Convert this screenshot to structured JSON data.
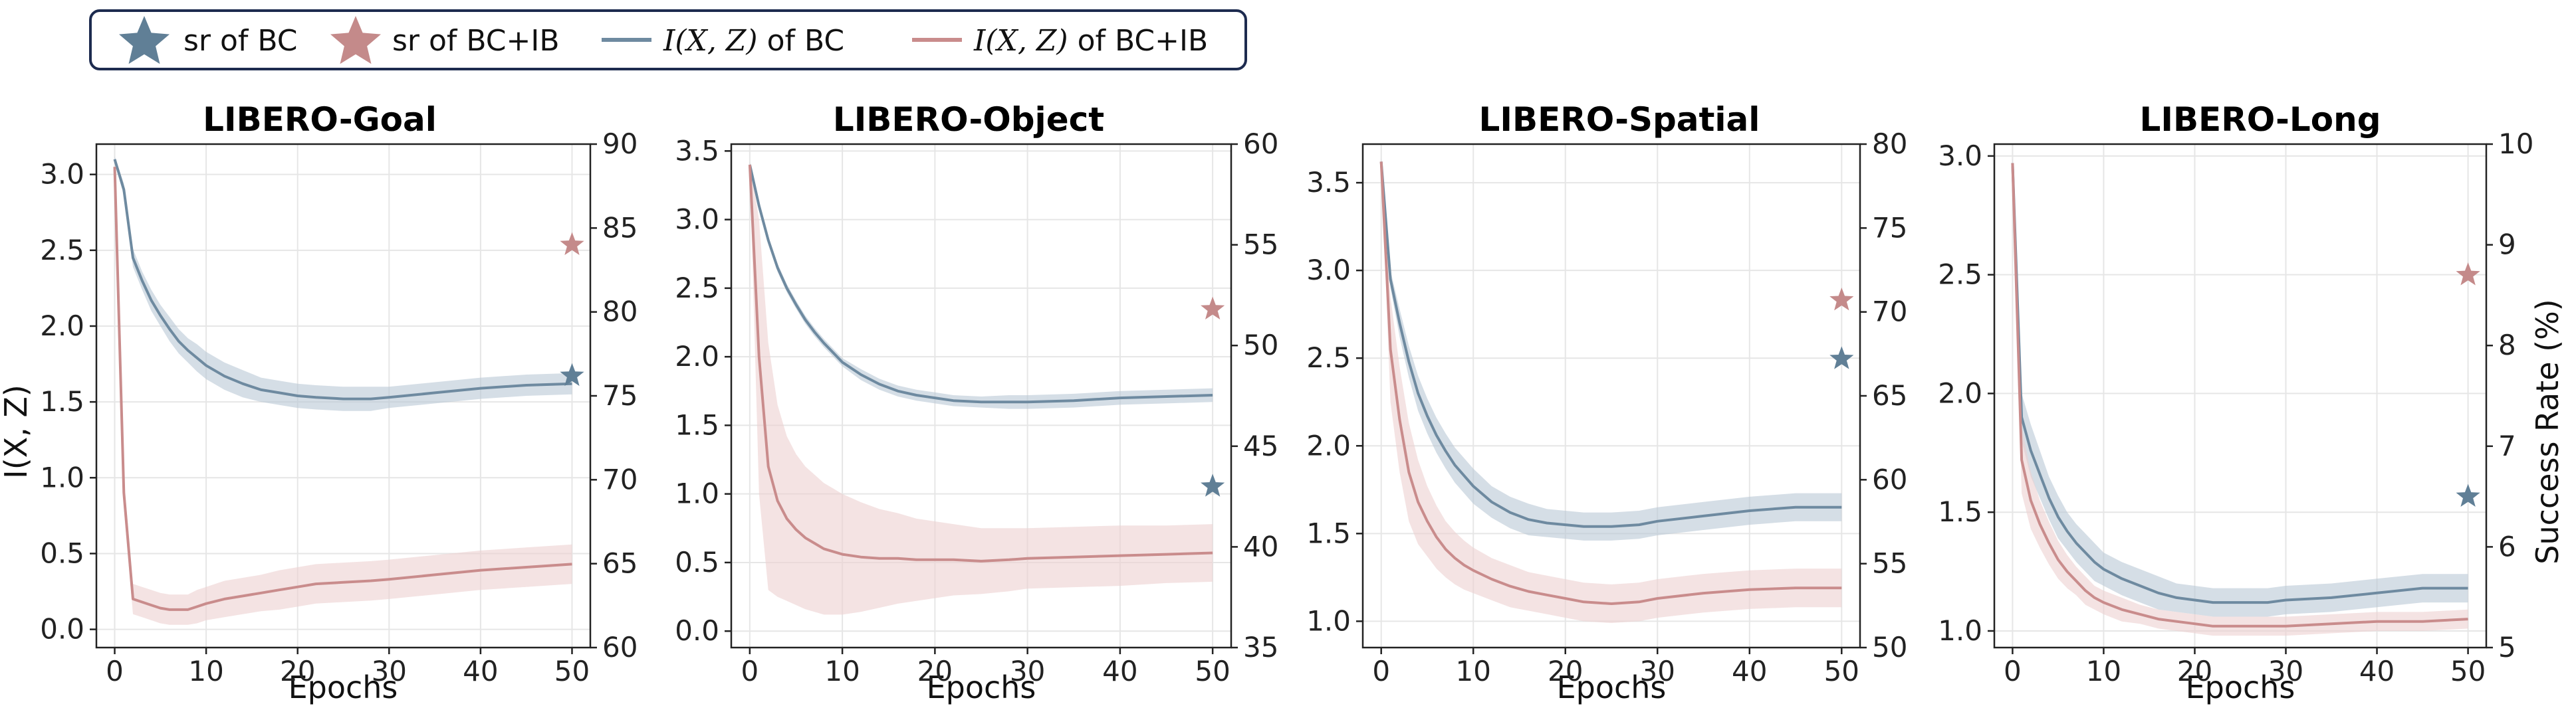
{
  "legend": {
    "items": [
      {
        "kind": "star",
        "color": "#607f96",
        "text": "sr of BC"
      },
      {
        "kind": "star",
        "color": "#c48a8a",
        "text": "sr of BC+IB"
      },
      {
        "kind": "line",
        "color": "#6e8aa0",
        "math": "I(X, Z)",
        "text": " of BC"
      },
      {
        "kind": "line",
        "color": "#c98c8c",
        "math": "I(X, Z)",
        "text": " of BC+IB"
      }
    ]
  },
  "chart_data": [
    {
      "type": "line",
      "title": "LIBERO-Goal",
      "xlabel": "Epochs",
      "ylabel": "I(X, Z)",
      "y2label": "",
      "xlim": [
        -2,
        52
      ],
      "ylim": [
        -0.12,
        3.2
      ],
      "y2lim": [
        60,
        90
      ],
      "xticks": [
        0,
        10,
        20,
        30,
        40,
        50
      ],
      "yticks": [
        0.0,
        0.5,
        1.0,
        1.5,
        2.0,
        2.5,
        3.0
      ],
      "ytick_labels": [
        "0.0",
        "0.5",
        "1.0",
        "1.5",
        "2.0",
        "2.5",
        "3.0"
      ],
      "y2ticks": [
        60,
        65,
        70,
        75,
        80,
        85,
        90
      ],
      "grid": true,
      "series": [
        {
          "color": "#6e8aa0",
          "band": "#b9c8d6",
          "x": [
            0,
            1,
            2,
            3,
            4,
            5,
            6,
            7,
            8,
            9,
            10,
            12,
            14,
            16,
            18,
            20,
            22,
            25,
            28,
            30,
            35,
            40,
            45,
            50
          ],
          "y": [
            3.1,
            2.9,
            2.45,
            2.3,
            2.17,
            2.07,
            1.98,
            1.9,
            1.84,
            1.79,
            1.74,
            1.67,
            1.62,
            1.58,
            1.56,
            1.54,
            1.53,
            1.52,
            1.52,
            1.53,
            1.56,
            1.59,
            1.61,
            1.62
          ],
          "band_width": [
            0.02,
            0.04,
            0.06,
            0.06,
            0.07,
            0.07,
            0.08,
            0.08,
            0.08,
            0.09,
            0.09,
            0.09,
            0.09,
            0.08,
            0.08,
            0.08,
            0.08,
            0.08,
            0.08,
            0.07,
            0.07,
            0.07,
            0.07,
            0.07
          ]
        },
        {
          "color": "#c98c8c",
          "band": "#ecd0d0",
          "x": [
            0,
            1,
            2,
            3,
            4,
            5,
            6,
            7,
            8,
            9,
            10,
            12,
            14,
            16,
            18,
            20,
            22,
            25,
            28,
            30,
            35,
            40,
            45,
            50
          ],
          "y": [
            3.05,
            0.9,
            0.2,
            0.18,
            0.16,
            0.14,
            0.13,
            0.13,
            0.13,
            0.15,
            0.17,
            0.2,
            0.22,
            0.24,
            0.26,
            0.28,
            0.3,
            0.31,
            0.32,
            0.33,
            0.36,
            0.39,
            0.41,
            0.43
          ],
          "band_width": [
            0.02,
            0.1,
            0.1,
            0.1,
            0.1,
            0.1,
            0.1,
            0.1,
            0.1,
            0.11,
            0.11,
            0.12,
            0.12,
            0.12,
            0.13,
            0.13,
            0.13,
            0.13,
            0.13,
            0.13,
            0.13,
            0.13,
            0.13,
            0.13
          ]
        }
      ],
      "stars": [
        {
          "x": 50,
          "sr": 76.2,
          "color": "#607f96"
        },
        {
          "x": 50,
          "sr": 84.0,
          "color": "#c48a8a"
        }
      ]
    },
    {
      "type": "line",
      "title": "LIBERO-Object",
      "xlabel": "Epochs",
      "ylabel": "",
      "y2label": "",
      "xlim": [
        -2,
        52
      ],
      "ylim": [
        -0.12,
        3.55
      ],
      "y2lim": [
        35,
        60
      ],
      "xticks": [
        0,
        10,
        20,
        30,
        40,
        50
      ],
      "yticks": [
        0.0,
        0.5,
        1.0,
        1.5,
        2.0,
        2.5,
        3.0,
        3.5
      ],
      "ytick_labels": [
        "0.0",
        "0.5",
        "1.0",
        "1.5",
        "2.0",
        "2.5",
        "3.0",
        "3.5"
      ],
      "y2ticks": [
        35,
        40,
        45,
        50,
        55,
        60
      ],
      "grid": true,
      "series": [
        {
          "color": "#6e8aa0",
          "band": "#b9c8d6",
          "x": [
            0,
            1,
            2,
            3,
            4,
            5,
            6,
            7,
            8,
            9,
            10,
            12,
            14,
            16,
            18,
            20,
            22,
            25,
            28,
            30,
            35,
            40,
            45,
            50
          ],
          "y": [
            3.4,
            3.1,
            2.85,
            2.65,
            2.5,
            2.38,
            2.27,
            2.18,
            2.1,
            2.03,
            1.96,
            1.87,
            1.8,
            1.75,
            1.72,
            1.7,
            1.68,
            1.67,
            1.67,
            1.67,
            1.68,
            1.7,
            1.71,
            1.72
          ],
          "band_width": [
            0.02,
            0.03,
            0.03,
            0.03,
            0.03,
            0.03,
            0.03,
            0.03,
            0.03,
            0.03,
            0.03,
            0.04,
            0.04,
            0.04,
            0.04,
            0.04,
            0.04,
            0.04,
            0.05,
            0.05,
            0.05,
            0.05,
            0.05,
            0.05
          ]
        },
        {
          "color": "#c98c8c",
          "band": "#ecd0d0",
          "x": [
            0,
            1,
            2,
            3,
            4,
            5,
            6,
            7,
            8,
            9,
            10,
            12,
            14,
            16,
            18,
            20,
            22,
            25,
            28,
            30,
            35,
            40,
            45,
            50
          ],
          "y": [
            3.4,
            2.0,
            1.2,
            0.95,
            0.82,
            0.74,
            0.68,
            0.64,
            0.6,
            0.58,
            0.56,
            0.54,
            0.53,
            0.53,
            0.52,
            0.52,
            0.52,
            0.51,
            0.52,
            0.53,
            0.54,
            0.55,
            0.56,
            0.57
          ],
          "band_width": [
            0.02,
            1.0,
            0.9,
            0.7,
            0.6,
            0.55,
            0.52,
            0.5,
            0.48,
            0.46,
            0.44,
            0.4,
            0.36,
            0.33,
            0.3,
            0.28,
            0.26,
            0.24,
            0.23,
            0.22,
            0.22,
            0.22,
            0.21,
            0.21
          ]
        }
      ],
      "stars": [
        {
          "x": 50,
          "sr": 43.0,
          "color": "#607f96"
        },
        {
          "x": 50,
          "sr": 51.8,
          "color": "#c48a8a"
        }
      ]
    },
    {
      "type": "line",
      "title": "LIBERO-Spatial",
      "xlabel": "Epochs",
      "ylabel": "",
      "y2label": "",
      "xlim": [
        -2,
        52
      ],
      "ylim": [
        0.85,
        3.72
      ],
      "y2lim": [
        50,
        80
      ],
      "xticks": [
        0,
        10,
        20,
        30,
        40,
        50
      ],
      "yticks": [
        1.0,
        1.5,
        2.0,
        2.5,
        3.0,
        3.5
      ],
      "ytick_labels": [
        "1.0",
        "1.5",
        "2.0",
        "2.5",
        "3.0",
        "3.5"
      ],
      "y2ticks": [
        50,
        55,
        60,
        65,
        70,
        75,
        80
      ],
      "grid": true,
      "series": [
        {
          "color": "#6e8aa0",
          "band": "#b9c8d6",
          "x": [
            0,
            1,
            2,
            3,
            4,
            5,
            6,
            7,
            8,
            9,
            10,
            12,
            14,
            16,
            18,
            20,
            22,
            25,
            28,
            30,
            35,
            40,
            45,
            50
          ],
          "y": [
            3.62,
            2.95,
            2.7,
            2.48,
            2.3,
            2.17,
            2.06,
            1.97,
            1.89,
            1.83,
            1.77,
            1.68,
            1.62,
            1.58,
            1.56,
            1.55,
            1.54,
            1.54,
            1.55,
            1.57,
            1.6,
            1.63,
            1.65,
            1.65
          ],
          "band_width": [
            0.02,
            0.05,
            0.08,
            0.09,
            0.1,
            0.1,
            0.1,
            0.1,
            0.1,
            0.1,
            0.1,
            0.09,
            0.09,
            0.09,
            0.08,
            0.08,
            0.08,
            0.08,
            0.08,
            0.08,
            0.08,
            0.08,
            0.08,
            0.08
          ]
        },
        {
          "color": "#c98c8c",
          "band": "#ecd0d0",
          "x": [
            0,
            1,
            2,
            3,
            4,
            5,
            6,
            7,
            8,
            9,
            10,
            12,
            14,
            16,
            18,
            20,
            22,
            25,
            28,
            30,
            35,
            40,
            45,
            50
          ],
          "y": [
            3.62,
            2.55,
            2.15,
            1.85,
            1.68,
            1.57,
            1.48,
            1.41,
            1.36,
            1.32,
            1.29,
            1.24,
            1.2,
            1.17,
            1.15,
            1.13,
            1.11,
            1.1,
            1.11,
            1.13,
            1.16,
            1.18,
            1.19,
            1.19
          ],
          "band_width": [
            0.02,
            0.3,
            0.3,
            0.28,
            0.24,
            0.2,
            0.18,
            0.16,
            0.15,
            0.14,
            0.13,
            0.12,
            0.12,
            0.11,
            0.11,
            0.11,
            0.11,
            0.11,
            0.11,
            0.11,
            0.11,
            0.11,
            0.11,
            0.11
          ]
        }
      ],
      "stars": [
        {
          "x": 50,
          "sr": 67.2,
          "color": "#607f96"
        },
        {
          "x": 50,
          "sr": 70.7,
          "color": "#c48a8a"
        }
      ]
    },
    {
      "type": "line",
      "title": "LIBERO-Long",
      "xlabel": "Epochs",
      "ylabel": "",
      "y2label": "Success Rate (%)",
      "xlim": [
        -2,
        52
      ],
      "ylim": [
        0.93,
        3.05
      ],
      "y2lim": [
        5,
        10
      ],
      "xticks": [
        0,
        10,
        20,
        30,
        40,
        50
      ],
      "yticks": [
        1.0,
        1.5,
        2.0,
        2.5,
        3.0
      ],
      "ytick_labels": [
        "1.0",
        "1.5",
        "2.0",
        "2.5",
        "3.0"
      ],
      "y2ticks": [
        5,
        6,
        7,
        8,
        9,
        10
      ],
      "grid": true,
      "series": [
        {
          "color": "#6e8aa0",
          "band": "#b9c8d6",
          "x": [
            0,
            1,
            2,
            3,
            4,
            5,
            6,
            7,
            8,
            9,
            10,
            12,
            14,
            16,
            18,
            20,
            22,
            25,
            28,
            30,
            35,
            40,
            45,
            50
          ],
          "y": [
            2.97,
            1.9,
            1.76,
            1.66,
            1.56,
            1.48,
            1.42,
            1.37,
            1.33,
            1.29,
            1.26,
            1.22,
            1.19,
            1.16,
            1.14,
            1.13,
            1.12,
            1.12,
            1.12,
            1.13,
            1.14,
            1.16,
            1.18,
            1.18
          ],
          "band_width": [
            0.02,
            0.1,
            0.11,
            0.1,
            0.09,
            0.09,
            0.08,
            0.08,
            0.08,
            0.08,
            0.07,
            0.07,
            0.07,
            0.07,
            0.06,
            0.06,
            0.06,
            0.06,
            0.06,
            0.06,
            0.06,
            0.06,
            0.06,
            0.06
          ]
        },
        {
          "color": "#c98c8c",
          "band": "#ecd0d0",
          "x": [
            0,
            1,
            2,
            3,
            4,
            5,
            6,
            7,
            8,
            9,
            10,
            12,
            14,
            16,
            18,
            20,
            22,
            25,
            28,
            30,
            35,
            40,
            45,
            50
          ],
          "y": [
            2.97,
            1.72,
            1.55,
            1.45,
            1.37,
            1.3,
            1.25,
            1.21,
            1.17,
            1.14,
            1.12,
            1.09,
            1.07,
            1.05,
            1.04,
            1.03,
            1.02,
            1.02,
            1.02,
            1.02,
            1.03,
            1.04,
            1.04,
            1.05
          ],
          "band_width": [
            0.02,
            0.14,
            0.12,
            0.1,
            0.09,
            0.08,
            0.07,
            0.06,
            0.06,
            0.05,
            0.05,
            0.05,
            0.04,
            0.04,
            0.04,
            0.04,
            0.04,
            0.04,
            0.04,
            0.04,
            0.04,
            0.04,
            0.04,
            0.04
          ]
        }
      ],
      "stars": [
        {
          "x": 50,
          "sr": 6.5,
          "color": "#607f96"
        },
        {
          "x": 50,
          "sr": 8.7,
          "color": "#c48a8a"
        }
      ]
    }
  ]
}
